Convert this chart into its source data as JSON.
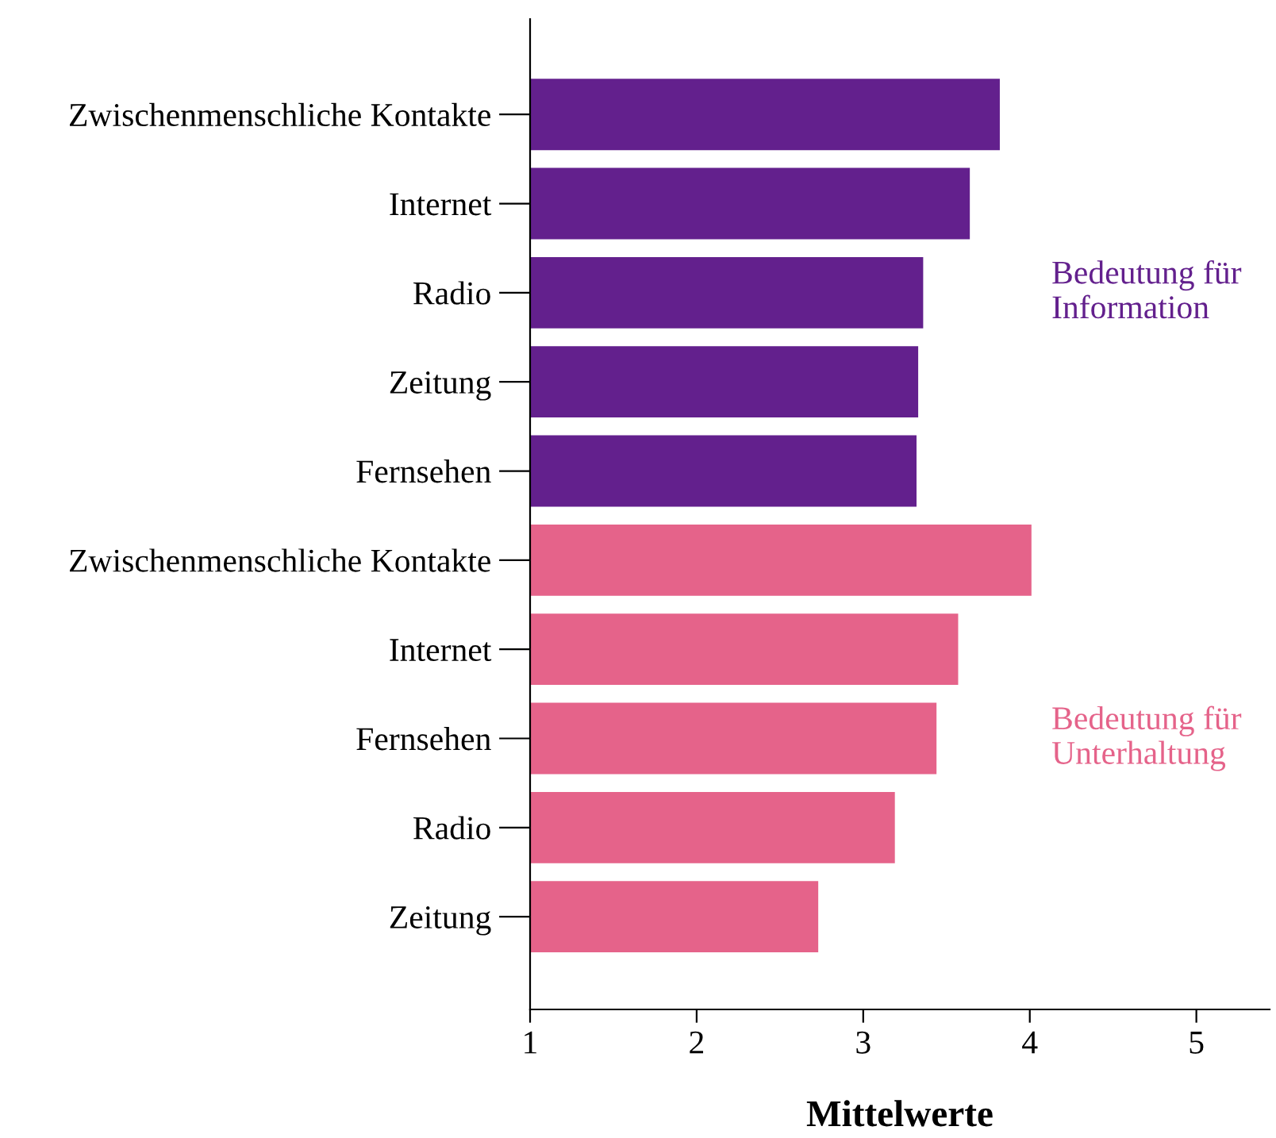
{
  "chart_data": {
    "type": "bar",
    "orientation": "horizontal",
    "xlabel": "Mittelwerte",
    "categories": [
      "Zwischenmenschliche Kontakte",
      "Internet",
      "Radio",
      "Zeitung",
      "Fernsehen",
      "Zwischenmenschliche Kontakte",
      "Internet",
      "Fernsehen",
      "Radio",
      "Zeitung"
    ],
    "series": [
      {
        "name": "Bedeutung für Information",
        "color": "#63208d",
        "values": [
          3.82,
          3.64,
          3.36,
          3.33,
          3.32,
          null,
          null,
          null,
          null,
          null
        ]
      },
      {
        "name": "Bedeutung für Unterhaltung",
        "color": "#e5638a",
        "values": [
          null,
          null,
          null,
          null,
          null,
          4.01,
          3.57,
          3.44,
          3.19,
          2.73
        ]
      }
    ],
    "xlim": [
      1,
      5.44
    ],
    "xticks": [
      1,
      2,
      3,
      4,
      5
    ],
    "grid": false,
    "legend": false
  }
}
